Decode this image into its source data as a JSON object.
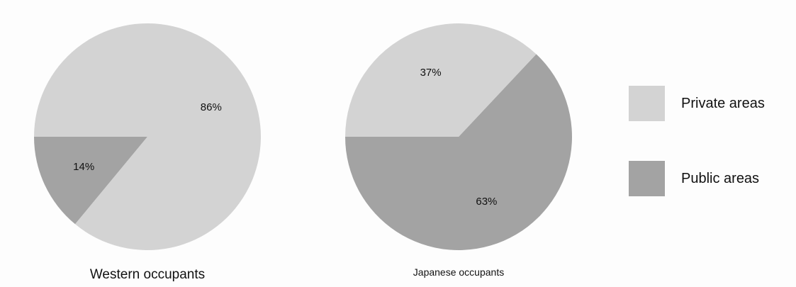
{
  "chart_data": [
    {
      "type": "pie",
      "title": "Western occupants",
      "slices": [
        {
          "label": "Private areas",
          "value": 86,
          "display": "86%"
        },
        {
          "label": "Public areas",
          "value": 14,
          "display": "14%"
        }
      ]
    },
    {
      "type": "pie",
      "title": "Japanese occupants",
      "slices": [
        {
          "label": "Private areas",
          "value": 37,
          "display": "37%"
        },
        {
          "label": "Public areas",
          "value": 63,
          "display": "63%"
        }
      ]
    }
  ],
  "legend": {
    "placement": "right",
    "items": [
      {
        "label": "Private areas",
        "color": "#d3d3d3"
      },
      {
        "label": "Public areas",
        "color": "#a3a3a3"
      }
    ]
  },
  "colors": {
    "private": "#d3d3d3",
    "public": "#a3a3a3",
    "background": "#fdfdfd"
  }
}
